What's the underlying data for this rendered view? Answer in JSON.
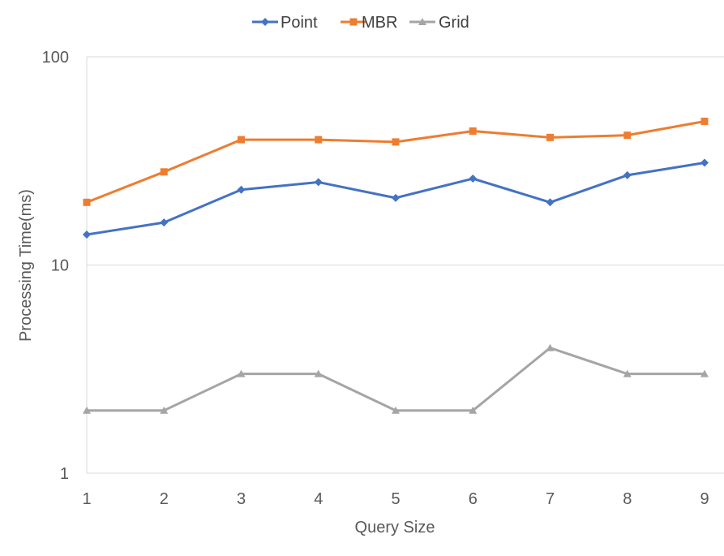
{
  "chart_data": {
    "type": "line",
    "title": "",
    "xlabel": "Query Size",
    "ylabel": "Processing Time(ms)",
    "y_scale": "log",
    "ylim": [
      1,
      100
    ],
    "y_ticks": [
      "1",
      "10",
      "100"
    ],
    "categories": [
      "1",
      "2",
      "3",
      "4",
      "5",
      "6",
      "7",
      "8",
      "9"
    ],
    "grid": "horizontal",
    "legend": "top",
    "series": [
      {
        "name": "Point",
        "color": "#4472C4",
        "marker": "diamond",
        "values": [
          14,
          16,
          23,
          25,
          21,
          26,
          20,
          27,
          31
        ]
      },
      {
        "name": "MBR",
        "color": "#ED7D31",
        "marker": "square",
        "values": [
          20,
          28,
          40,
          40,
          39,
          44,
          41,
          42,
          49
        ]
      },
      {
        "name": "Grid",
        "color": "#A5A5A5",
        "marker": "triangle",
        "values": [
          2,
          2,
          3,
          3,
          2,
          2,
          4,
          3,
          3
        ]
      }
    ]
  }
}
